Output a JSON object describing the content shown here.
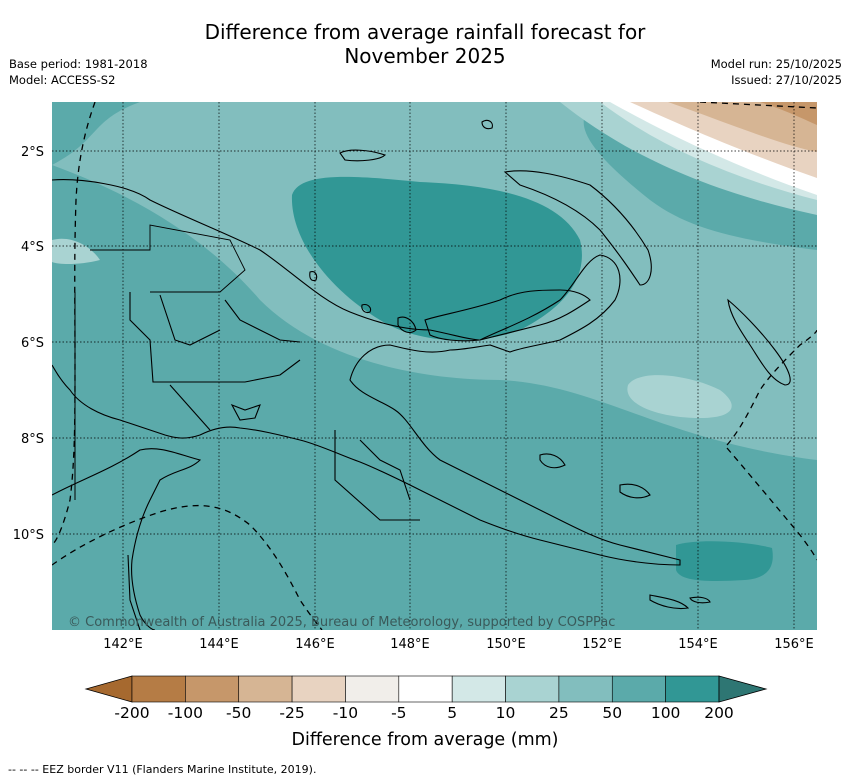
{
  "title_line1": "Difference from average rainfall forecast for",
  "title_line2": "November 2025",
  "meta_left": [
    "Base period: 1981-2018",
    "Model: ACCESS-S2"
  ],
  "meta_right": [
    "Model run: 25/10/2025",
    "Issued: 27/10/2025"
  ],
  "lat_ticks": [
    "2°S",
    "4°S",
    "6°S",
    "8°S",
    "10°S"
  ],
  "lon_ticks": [
    "142°E",
    "144°E",
    "146°E",
    "148°E",
    "150°E",
    "152°E",
    "154°E",
    "156°E"
  ],
  "credit": "© Commonwealth of Australia 2025, Bureau of Meteorology, supported by COSPPac",
  "colorbar": {
    "labels": [
      "-200",
      "-100",
      "-50",
      "-25",
      "-10",
      "-5",
      "5",
      "10",
      "25",
      "50",
      "100",
      "200"
    ],
    "colors": [
      "#a6692f",
      "#b57c45",
      "#c6976a",
      "#d6b594",
      "#e8d3c1",
      "#f1eeea",
      "#ffffff",
      "#d3e8e7",
      "#a9d3d2",
      "#82bebe",
      "#5baaaa",
      "#319795",
      "#2e7673"
    ],
    "title": "Difference from average (mm)"
  },
  "footnote": "--  --  -- EEZ border V11 (Flanders Marine Institute, 2019)."
}
